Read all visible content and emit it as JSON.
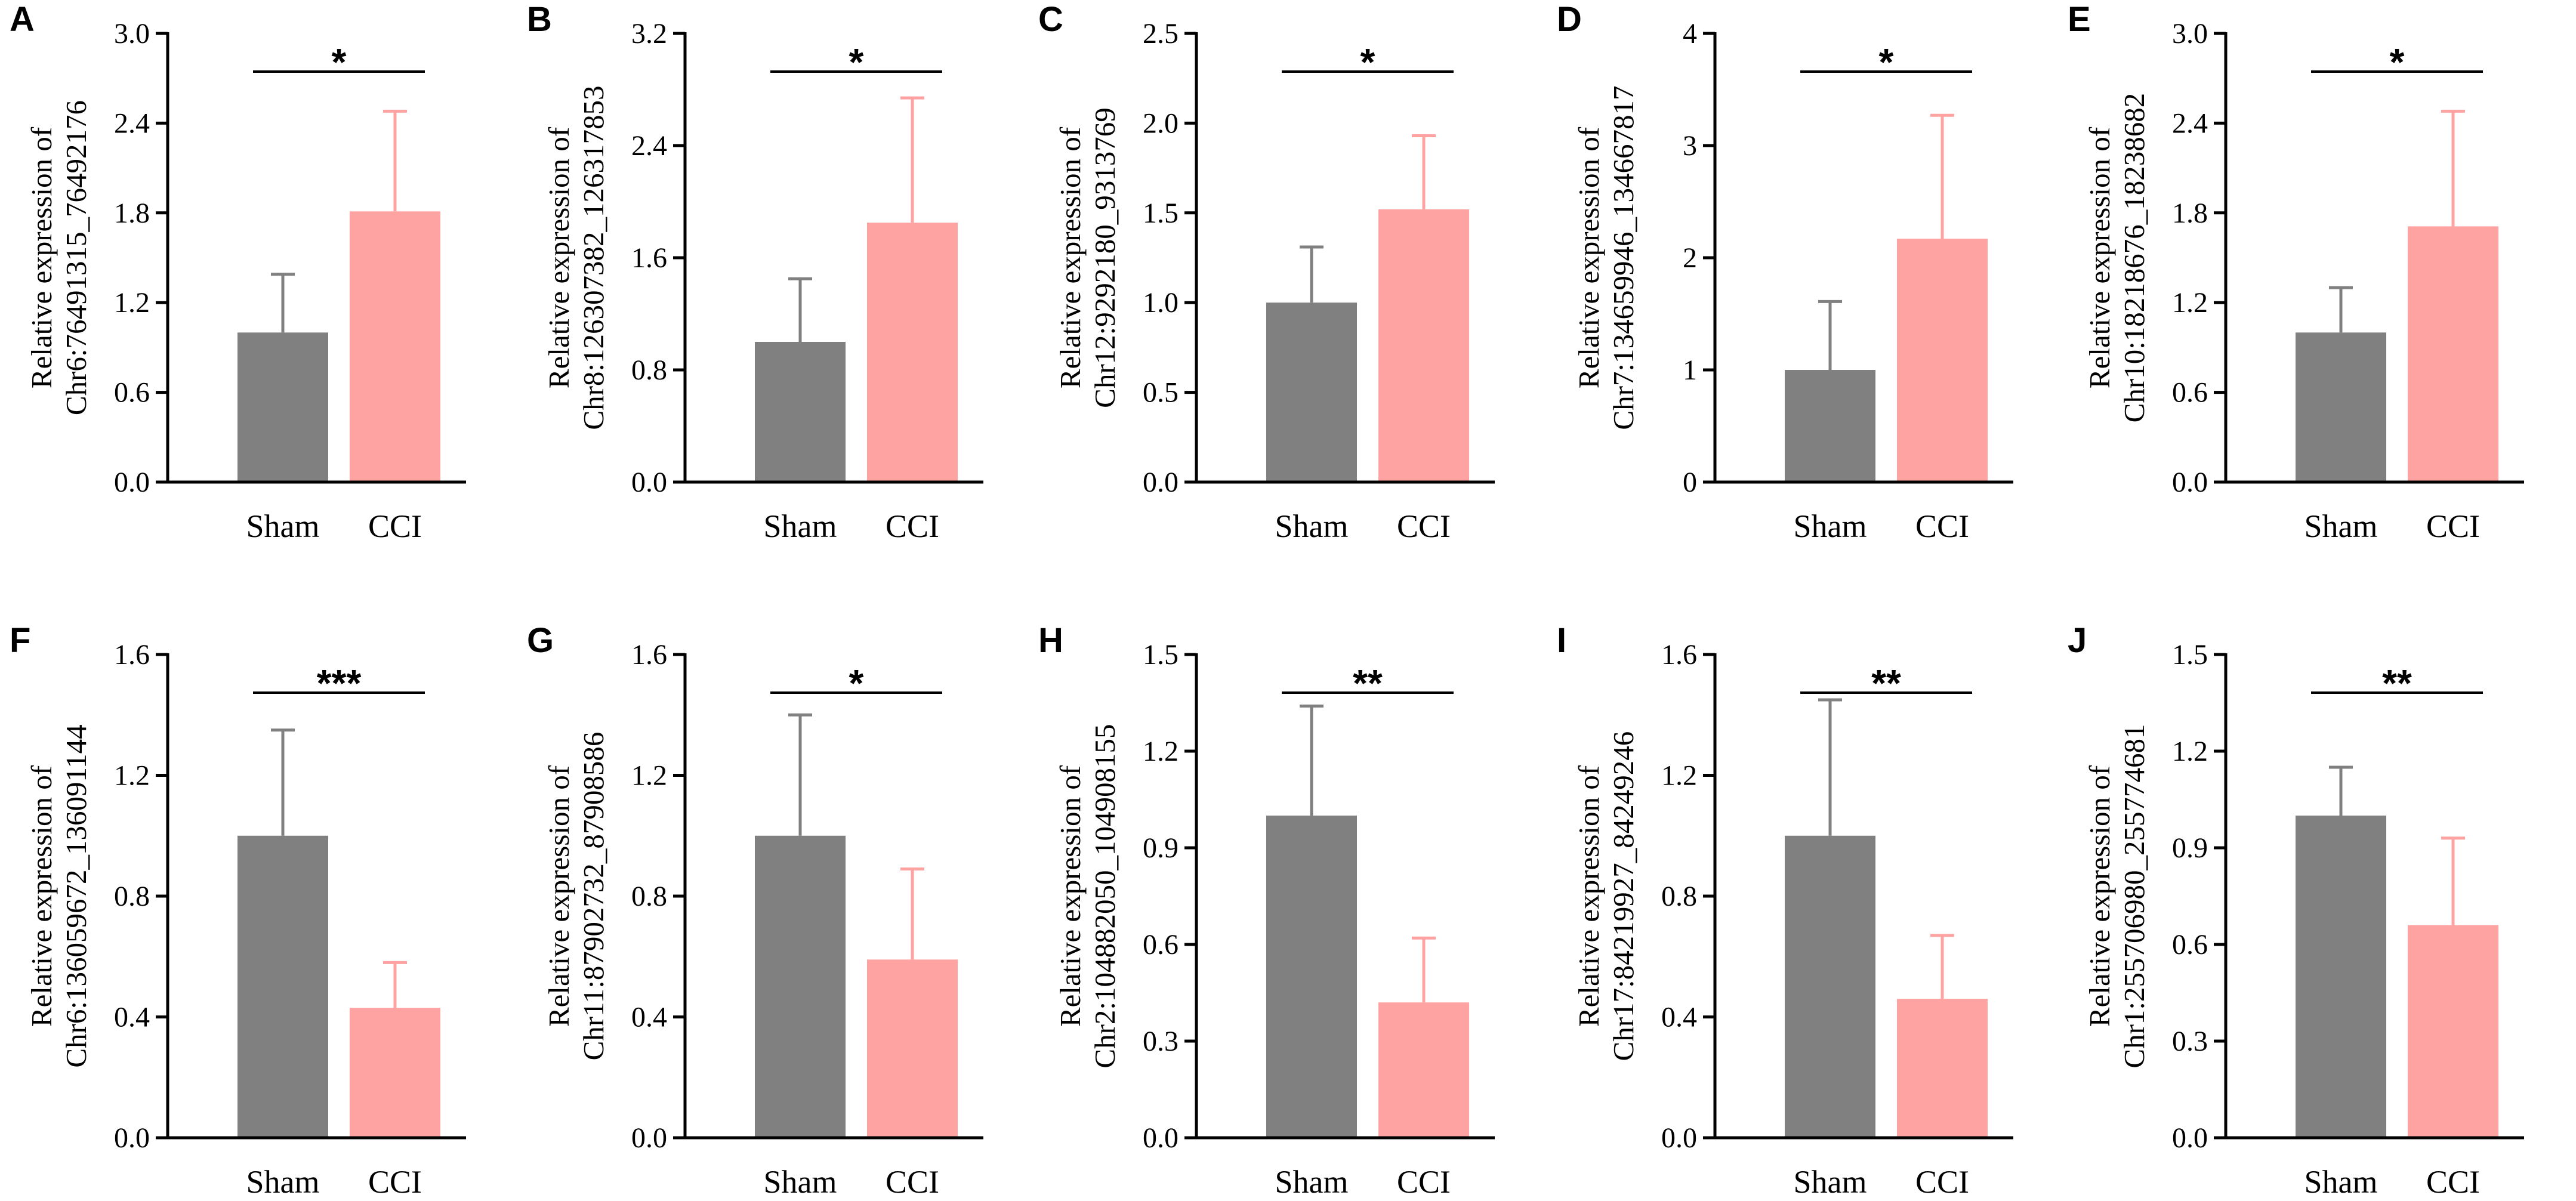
{
  "colors": {
    "sham": "#808080",
    "cci": "#ffa2a2",
    "axis": "#000000"
  },
  "chart_data": [
    {
      "panel": "A",
      "type": "bar",
      "categories": [
        "Sham",
        "CCI"
      ],
      "values": [
        1.0,
        1.81
      ],
      "errors": [
        0.39,
        0.67
      ],
      "ylabel": [
        "Relative expression of",
        "Chr6:76491315_76492176"
      ],
      "ylim": [
        0,
        3.0
      ],
      "ticks": [
        0.0,
        0.6,
        1.2,
        1.8,
        2.4,
        3.0
      ],
      "tick_labels": [
        "0.0",
        "0.6",
        "1.2",
        "1.8",
        "2.4",
        "3.0"
      ],
      "significance": "*"
    },
    {
      "panel": "B",
      "type": "bar",
      "categories": [
        "Sham",
        "CCI"
      ],
      "values": [
        1.0,
        1.85
      ],
      "errors": [
        0.45,
        0.89
      ],
      "ylabel": [
        "Relative expression of",
        "Chr8:126307382_126317853"
      ],
      "ylim": [
        0,
        3.2
      ],
      "ticks": [
        0.0,
        0.8,
        1.6,
        2.4,
        3.2
      ],
      "tick_labels": [
        "0.0",
        "0.8",
        "1.6",
        "2.4",
        "3.2"
      ],
      "significance": "*"
    },
    {
      "panel": "C",
      "type": "bar",
      "categories": [
        "Sham",
        "CCI"
      ],
      "values": [
        1.0,
        1.52
      ],
      "errors": [
        0.31,
        0.41
      ],
      "ylabel": [
        "Relative expression of",
        "Chr12:9292180_9313769"
      ],
      "ylim": [
        0,
        2.5
      ],
      "ticks": [
        0.0,
        0.5,
        1.0,
        1.5,
        2.0,
        2.5
      ],
      "tick_labels": [
        "0.0",
        "0.5",
        "1.0",
        "1.5",
        "2.0",
        "2.5"
      ],
      "significance": "*"
    },
    {
      "panel": "D",
      "type": "bar",
      "categories": [
        "Sham",
        "CCI"
      ],
      "values": [
        1.0,
        2.17
      ],
      "errors": [
        0.61,
        1.1
      ],
      "ylabel": [
        "Relative expression of",
        "Chr7:134659946_134667817"
      ],
      "ylim": [
        0,
        4
      ],
      "ticks": [
        0,
        1,
        2,
        3,
        4
      ],
      "tick_labels": [
        "0",
        "1",
        "2",
        "3",
        "4"
      ],
      "significance": "*"
    },
    {
      "panel": "E",
      "type": "bar",
      "categories": [
        "Sham",
        "CCI"
      ],
      "values": [
        1.0,
        1.71
      ],
      "errors": [
        0.3,
        0.77
      ],
      "ylabel": [
        "Relative expression of",
        "Chr10:18218676_18238682"
      ],
      "ylim": [
        0,
        3.0
      ],
      "ticks": [
        0.0,
        0.6,
        1.2,
        1.8,
        2.4,
        3.0
      ],
      "tick_labels": [
        "0.0",
        "0.6",
        "1.2",
        "1.8",
        "2.4",
        "3.0"
      ],
      "significance": "*"
    },
    {
      "panel": "F",
      "type": "bar",
      "categories": [
        "Sham",
        "CCI"
      ],
      "values": [
        1.0,
        0.43
      ],
      "errors": [
        0.35,
        0.15
      ],
      "ylabel": [
        "Relative expression of",
        "Chr6:136059672_136091144"
      ],
      "ylim": [
        0,
        1.6
      ],
      "ticks": [
        0.0,
        0.4,
        0.8,
        1.2,
        1.6
      ],
      "tick_labels": [
        "0.0",
        "0.4",
        "0.8",
        "1.2",
        "1.6"
      ],
      "significance": "***"
    },
    {
      "panel": "G",
      "type": "bar",
      "categories": [
        "Sham",
        "CCI"
      ],
      "values": [
        1.0,
        0.59
      ],
      "errors": [
        0.4,
        0.3
      ],
      "ylabel": [
        "Relative expression of",
        "Chr11:87902732_87908586"
      ],
      "ylim": [
        0,
        1.6
      ],
      "ticks": [
        0.0,
        0.4,
        0.8,
        1.2,
        1.6
      ],
      "tick_labels": [
        "0.0",
        "0.4",
        "0.8",
        "1.2",
        "1.6"
      ],
      "significance": "*"
    },
    {
      "panel": "H",
      "type": "bar",
      "categories": [
        "Sham",
        "CCI"
      ],
      "values": [
        1.0,
        0.42
      ],
      "errors": [
        0.34,
        0.2
      ],
      "ylabel": [
        "Relative expression of",
        "Chr2:104882050_104908155"
      ],
      "ylim": [
        0,
        1.5
      ],
      "ticks": [
        0.0,
        0.3,
        0.6,
        0.9,
        1.2,
        1.5
      ],
      "tick_labels": [
        "0.0",
        "0.3",
        "0.6",
        "0.9",
        "1.2",
        "1.5"
      ],
      "significance": "**"
    },
    {
      "panel": "I",
      "type": "bar",
      "categories": [
        "Sham",
        "CCI"
      ],
      "values": [
        1.0,
        0.46
      ],
      "errors": [
        0.45,
        0.21
      ],
      "ylabel": [
        "Relative expression of",
        "Chr17:84219927_84249246"
      ],
      "ylim": [
        0,
        1.6
      ],
      "ticks": [
        0.0,
        0.4,
        0.8,
        1.2,
        1.6
      ],
      "tick_labels": [
        "0.0",
        "0.4",
        "0.8",
        "1.2",
        "1.6"
      ],
      "significance": "**"
    },
    {
      "panel": "J",
      "type": "bar",
      "categories": [
        "Sham",
        "CCI"
      ],
      "values": [
        1.0,
        0.66
      ],
      "errors": [
        0.15,
        0.27
      ],
      "ylabel": [
        "Relative expression of",
        "Chr1:255706980_255774681"
      ],
      "ylim": [
        0,
        1.5
      ],
      "ticks": [
        0.0,
        0.3,
        0.6,
        0.9,
        1.2,
        1.5
      ],
      "tick_labels": [
        "0.0",
        "0.3",
        "0.6",
        "0.9",
        "1.2",
        "1.5"
      ],
      "significance": "**"
    }
  ]
}
